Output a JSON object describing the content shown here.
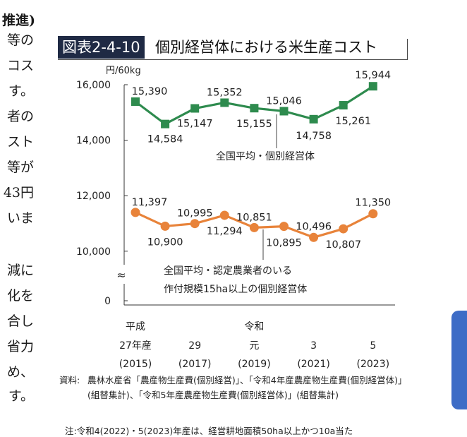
{
  "left_text": {
    "heading": "推進)",
    "lines": [
      "等の",
      "コス",
      "す。",
      "者の",
      "スト",
      "等が",
      "43円",
      "いま",
      "",
      "減に",
      "化を",
      "合し",
      "省力",
      "め、",
      "す。"
    ]
  },
  "figure": {
    "number": "図表2-4-10",
    "title": "個別経営体における米生産コスト"
  },
  "chart_data": {
    "type": "line",
    "unit_label": "円/60kg",
    "x": [
      "2015",
      "2016",
      "2017",
      "2018",
      "2019",
      "2020",
      "2021",
      "2022",
      "2023"
    ],
    "x_tick_labels": [
      {
        "era": "平成",
        "year": "27年産",
        "ad": "(2015)"
      },
      {
        "era": "",
        "year": "29",
        "ad": "(2017)"
      },
      {
        "era": "令和",
        "year": "元",
        "ad": "(2019)"
      },
      {
        "era": "",
        "year": "3",
        "ad": "(2021)"
      },
      {
        "era": "",
        "year": "5",
        "ad": "(2023)"
      }
    ],
    "y_ticks": [
      "16,000",
      "14,000",
      "12,000",
      "10,000",
      "0"
    ],
    "y_axis_break": "≈",
    "ylim": [
      9000,
      16000
    ],
    "series": [
      {
        "name": "全国平均・個別経営体",
        "color": "#2e8b4e",
        "values": [
          15390,
          14584,
          15147,
          15352,
          15155,
          15046,
          14758,
          15261,
          15944
        ],
        "labels": [
          "15,390",
          "14,584",
          "15,147",
          "15,352",
          "15,155",
          "15,046",
          "14,758",
          "15,261",
          "15,944"
        ]
      },
      {
        "name_lines": [
          "全国平均・認定農業者のいる",
          "作付規模15ha以上の個別経営体"
        ],
        "color": "#e8833a",
        "values": [
          11397,
          10900,
          10995,
          11294,
          10851,
          10895,
          10496,
          10807,
          11350
        ],
        "labels": [
          "11,397",
          "10,900",
          "10,995",
          "11,294",
          "10,851",
          "10,895",
          "10,496",
          "10,807",
          "11,350"
        ]
      }
    ]
  },
  "source": {
    "label": "資料:",
    "text": "農林水産省「農産物生産費(個別経営)」、「令和4年産農産物生産費(個別経営体)」(組替集計)、「令和5年産農産物生産費(個別経営体)」(組替集計)"
  },
  "note": "注:令和4(2022)・5(2023)年産は、経営耕地面積50ha以上かつ10a当た"
}
